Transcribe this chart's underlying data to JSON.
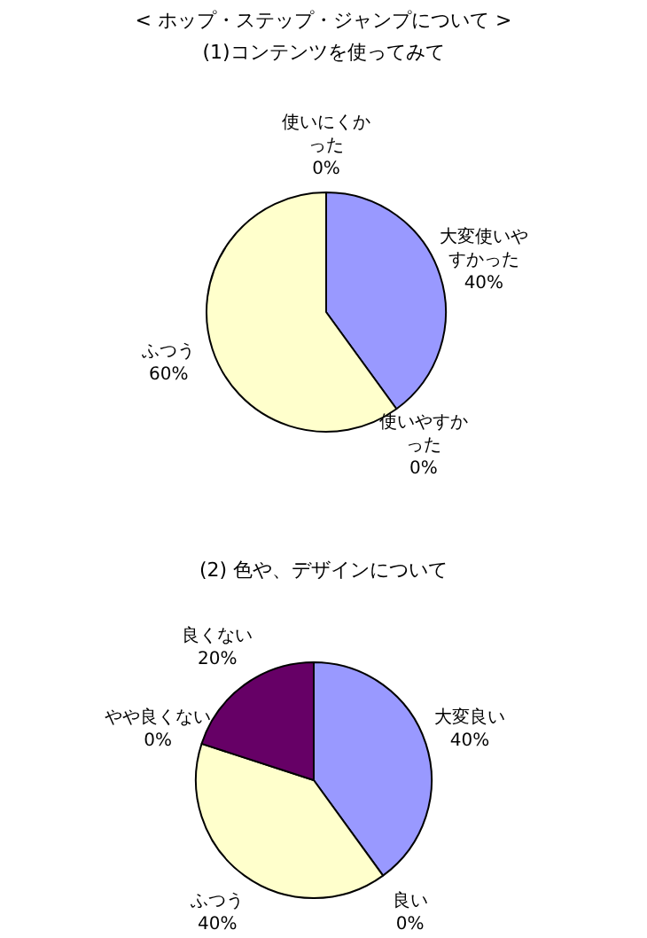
{
  "chart_data": [
    {
      "type": "pie",
      "title": "< ホップ・ステップ・ジャンプについて >",
      "subtitle": "(1)コンテンツを使ってみて",
      "categories": [
        "大変使いやすかった",
        "使いやすかった",
        "ふつう",
        "使いにくかった"
      ],
      "values": [
        40,
        0,
        60,
        0
      ],
      "colors": [
        "#9999ff",
        "#660066",
        "#ffffcc",
        "#ccffff"
      ],
      "value_labels": [
        "40%",
        "0%",
        "60%",
        "0%"
      ],
      "legend": false
    },
    {
      "type": "pie",
      "title": "(2) 色や、デザインについて",
      "categories": [
        "大変良い",
        "良い",
        "ふつう",
        "やや良くない",
        "良くない"
      ],
      "values": [
        40,
        0,
        40,
        0,
        20
      ],
      "colors": [
        "#9999ff",
        "#ccffff",
        "#ffffcc",
        "#ff8080",
        "#660066"
      ],
      "value_labels": [
        "40%",
        "0%",
        "40%",
        "0%",
        "20%"
      ],
      "legend": false
    }
  ]
}
